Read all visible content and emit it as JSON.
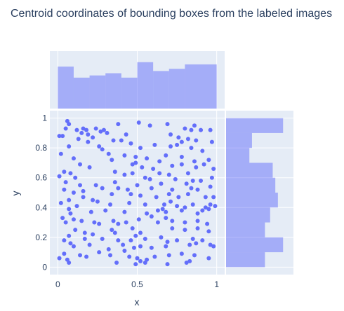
{
  "chart_data": {
    "type": "scatter",
    "title": "Centroid coordinates of bounding boxes from the labeled images",
    "xlabel": "x",
    "ylabel": "y",
    "xlim": [
      -0.05,
      1.05
    ],
    "ylim": [
      -0.05,
      1.05
    ],
    "x_ticks": [
      0,
      0.5,
      1
    ],
    "x_tick_labels": [
      "0",
      "0.5",
      "1"
    ],
    "y_ticks": [
      0,
      0.2,
      0.4,
      0.6,
      0.8,
      1
    ],
    "y_tick_labels": [
      "0",
      "0.2",
      "0.4",
      "0.6",
      "0.8",
      "1"
    ],
    "grid": true,
    "colors": {
      "marker": "#636efa",
      "histogram_fill": "#636efa",
      "plot_background": "#e5ecf6",
      "grid": "#ffffff",
      "text": "#2a3f5f"
    },
    "marginal_x_histogram": {
      "bins": [
        0,
        0.1,
        0.2,
        0.3,
        0.4,
        0.5,
        0.6,
        0.7,
        0.8,
        0.9,
        1.0
      ],
      "counts": [
        19,
        14,
        15,
        16,
        14,
        21,
        17,
        18,
        20,
        20
      ]
    },
    "marginal_y_histogram": {
      "bins": [
        0,
        0.1,
        0.2,
        0.3,
        0.4,
        0.5,
        0.6,
        0.7,
        0.8,
        0.9,
        1.0
      ],
      "counts": [
        15,
        22,
        15,
        17,
        20,
        19,
        18,
        9,
        10,
        22
      ]
    },
    "points": [
      [
        0.06,
        0.98
      ],
      [
        0.07,
        0.96
      ],
      [
        0.05,
        0.93
      ],
      [
        0.16,
        0.93
      ],
      [
        0.12,
        0.92
      ],
      [
        0.18,
        0.92
      ],
      [
        0.24,
        0.93
      ],
      [
        0.27,
        0.91
      ],
      [
        0.29,
        0.92
      ],
      [
        0.38,
        0.96
      ],
      [
        0.51,
        0.97
      ],
      [
        0.58,
        0.95
      ],
      [
        0.69,
        0.96
      ],
      [
        0.86,
        0.95
      ],
      [
        0.8,
        0.93
      ],
      [
        0.84,
        0.92
      ],
      [
        0.9,
        0.92
      ],
      [
        0.96,
        0.92
      ],
      [
        0.01,
        0.88
      ],
      [
        0.03,
        0.88
      ],
      [
        0.15,
        0.9
      ],
      [
        0.19,
        0.89
      ],
      [
        0.22,
        0.87
      ],
      [
        0.31,
        0.9
      ],
      [
        0.43,
        0.89
      ],
      [
        0.46,
        0.83
      ],
      [
        0.4,
        0.85
      ],
      [
        0.35,
        0.85
      ],
      [
        0.26,
        0.81
      ],
      [
        0.19,
        0.84
      ],
      [
        0.13,
        0.86
      ],
      [
        0.71,
        0.89
      ],
      [
        0.76,
        0.87
      ],
      [
        0.82,
        0.86
      ],
      [
        0.78,
        0.84
      ],
      [
        0.87,
        0.85
      ],
      [
        0.97,
        0.84
      ],
      [
        0.07,
        0.81
      ],
      [
        0.28,
        0.79
      ],
      [
        0.52,
        0.8
      ],
      [
        0.61,
        0.82
      ],
      [
        0.71,
        0.81
      ],
      [
        0.75,
        0.82
      ],
      [
        0.84,
        0.8
      ],
      [
        0.91,
        0.78
      ],
      [
        0.02,
        0.76
      ],
      [
        0.32,
        0.76
      ],
      [
        0.34,
        0.72
      ],
      [
        0.42,
        0.75
      ],
      [
        0.49,
        0.74
      ],
      [
        0.56,
        0.73
      ],
      [
        0.68,
        0.75
      ],
      [
        0.78,
        0.74
      ],
      [
        0.86,
        0.71
      ],
      [
        0.95,
        0.72
      ],
      [
        0.1,
        0.73
      ],
      [
        0.14,
        0.69
      ],
      [
        0.2,
        0.67
      ],
      [
        0.47,
        0.69
      ],
      [
        0.49,
        0.7
      ],
      [
        0.53,
        0.67
      ],
      [
        0.6,
        0.66
      ],
      [
        0.64,
        0.71
      ],
      [
        0.72,
        0.68
      ],
      [
        0.78,
        0.69
      ],
      [
        0.87,
        0.67
      ],
      [
        0.92,
        0.69
      ],
      [
        0.98,
        0.66
      ],
      [
        0.04,
        0.64
      ],
      [
        0.08,
        0.63
      ],
      [
        0.36,
        0.64
      ],
      [
        0.42,
        0.62
      ],
      [
        0.47,
        0.63
      ],
      [
        0.55,
        0.6
      ],
      [
        0.64,
        0.63
      ],
      [
        0.7,
        0.62
      ],
      [
        0.74,
        0.59
      ],
      [
        0.82,
        0.63
      ],
      [
        0.85,
        0.58
      ],
      [
        0.9,
        0.58
      ],
      [
        0.97,
        0.6
      ],
      [
        0.01,
        0.61
      ],
      [
        0.11,
        0.6
      ],
      [
        0.05,
        0.57
      ],
      [
        0.14,
        0.55
      ],
      [
        0.24,
        0.55
      ],
      [
        0.28,
        0.53
      ],
      [
        0.36,
        0.57
      ],
      [
        0.38,
        0.53
      ],
      [
        0.44,
        0.52
      ],
      [
        0.5,
        0.55
      ],
      [
        0.58,
        0.59
      ],
      [
        0.59,
        0.53
      ],
      [
        0.65,
        0.56
      ],
      [
        0.72,
        0.52
      ],
      [
        0.81,
        0.56
      ],
      [
        0.84,
        0.53
      ],
      [
        0.88,
        0.52
      ],
      [
        0.96,
        0.54
      ],
      [
        0.04,
        0.52
      ],
      [
        0.1,
        0.5
      ],
      [
        0.16,
        0.51
      ],
      [
        0.34,
        0.49
      ],
      [
        0.46,
        0.49
      ],
      [
        0.52,
        0.48
      ],
      [
        0.62,
        0.47
      ],
      [
        0.7,
        0.49
      ],
      [
        0.76,
        0.47
      ],
      [
        0.82,
        0.49
      ],
      [
        0.93,
        0.47
      ],
      [
        0.98,
        0.47
      ],
      [
        0.02,
        0.43
      ],
      [
        0.07,
        0.45
      ],
      [
        0.12,
        0.41
      ],
      [
        0.16,
        0.47
      ],
      [
        0.22,
        0.45
      ],
      [
        0.25,
        0.44
      ],
      [
        0.33,
        0.42
      ],
      [
        0.45,
        0.43
      ],
      [
        0.55,
        0.42
      ],
      [
        0.67,
        0.42
      ],
      [
        0.71,
        0.44
      ],
      [
        0.75,
        0.41
      ],
      [
        0.8,
        0.4
      ],
      [
        0.85,
        0.42
      ],
      [
        0.93,
        0.4
      ],
      [
        0.96,
        0.42
      ],
      [
        0.99,
        0.41
      ],
      [
        0.07,
        0.39
      ],
      [
        0.08,
        0.36
      ],
      [
        0.21,
        0.37
      ],
      [
        0.3,
        0.38
      ],
      [
        0.42,
        0.37
      ],
      [
        0.56,
        0.36
      ],
      [
        0.63,
        0.38
      ],
      [
        0.66,
        0.39
      ],
      [
        0.68,
        0.37
      ],
      [
        0.78,
        0.38
      ],
      [
        0.88,
        0.36
      ],
      [
        0.91,
        0.38
      ],
      [
        0.95,
        0.39
      ],
      [
        0.03,
        0.33
      ],
      [
        0.05,
        0.3
      ],
      [
        0.1,
        0.32
      ],
      [
        0.15,
        0.31
      ],
      [
        0.23,
        0.3
      ],
      [
        0.26,
        0.29
      ],
      [
        0.35,
        0.31
      ],
      [
        0.38,
        0.29
      ],
      [
        0.43,
        0.3
      ],
      [
        0.51,
        0.32
      ],
      [
        0.59,
        0.34
      ],
      [
        0.63,
        0.3
      ],
      [
        0.68,
        0.33
      ],
      [
        0.72,
        0.31
      ],
      [
        0.8,
        0.3
      ],
      [
        0.88,
        0.31
      ],
      [
        0.94,
        0.29
      ],
      [
        0.11,
        0.25
      ],
      [
        0.17,
        0.23
      ],
      [
        0.34,
        0.25
      ],
      [
        0.36,
        0.23
      ],
      [
        0.47,
        0.26
      ],
      [
        0.52,
        0.23
      ],
      [
        0.72,
        0.26
      ],
      [
        0.8,
        0.25
      ],
      [
        0.88,
        0.26
      ],
      [
        0.95,
        0.24
      ],
      [
        0.07,
        0.21
      ],
      [
        0.04,
        0.18
      ],
      [
        0.08,
        0.16
      ],
      [
        0.17,
        0.19
      ],
      [
        0.22,
        0.22
      ],
      [
        0.28,
        0.19
      ],
      [
        0.38,
        0.18
      ],
      [
        0.41,
        0.15
      ],
      [
        0.46,
        0.18
      ],
      [
        0.49,
        0.21
      ],
      [
        0.55,
        0.19
      ],
      [
        0.65,
        0.2
      ],
      [
        0.69,
        0.17
      ],
      [
        0.75,
        0.18
      ],
      [
        0.85,
        0.19
      ],
      [
        0.87,
        0.16
      ],
      [
        0.91,
        0.18
      ],
      [
        0.98,
        0.14
      ],
      [
        0.1,
        0.14
      ],
      [
        0.2,
        0.15
      ],
      [
        0.32,
        0.12
      ],
      [
        0.42,
        0.11
      ],
      [
        0.48,
        0.13
      ],
      [
        0.52,
        0.14
      ],
      [
        0.59,
        0.13
      ],
      [
        0.68,
        0.14
      ],
      [
        0.83,
        0.15
      ],
      [
        0.96,
        0.15
      ],
      [
        0.04,
        0.09
      ],
      [
        0.01,
        0.06
      ],
      [
        0.06,
        0.05
      ],
      [
        0.14,
        0.08
      ],
      [
        0.26,
        0.1
      ],
      [
        0.33,
        0.08
      ],
      [
        0.45,
        0.07
      ],
      [
        0.5,
        0.06
      ],
      [
        0.52,
        0.04
      ],
      [
        0.56,
        0.05
      ],
      [
        0.61,
        0.07
      ],
      [
        0.7,
        0.08
      ],
      [
        0.78,
        0.09
      ],
      [
        0.86,
        0.08
      ],
      [
        0.95,
        0.06
      ],
      [
        0.07,
        0.03
      ],
      [
        0.18,
        0.07
      ],
      [
        0.37,
        0.03
      ],
      [
        0.49,
        0.02
      ],
      [
        0.55,
        0.03
      ],
      [
        0.69,
        0.02
      ],
      [
        0.81,
        0.03
      ],
      [
        0.83,
        0.04
      ]
    ]
  }
}
